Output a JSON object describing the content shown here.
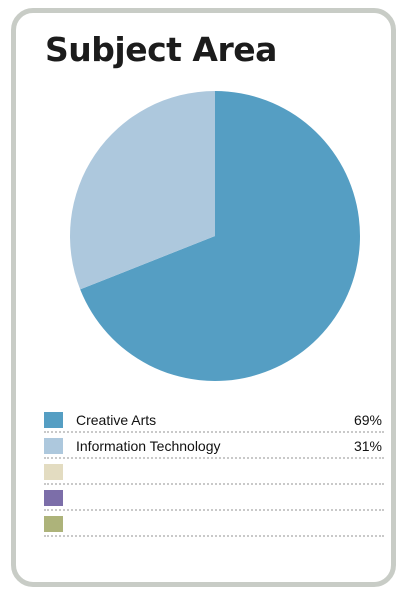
{
  "chart_data": {
    "type": "pie",
    "title": "Subject Area",
    "categories": [
      "Creative Arts",
      "Information Technology",
      "",
      "",
      ""
    ],
    "values": [
      69,
      31,
      0,
      0,
      0
    ],
    "value_labels": [
      "69%",
      "31%",
      "",
      "",
      ""
    ],
    "colors": [
      "#559ec3",
      "#adc8dd",
      "#e3dcc1",
      "#7c6ea9",
      "#adb37a"
    ],
    "legend_position": "bottom"
  }
}
